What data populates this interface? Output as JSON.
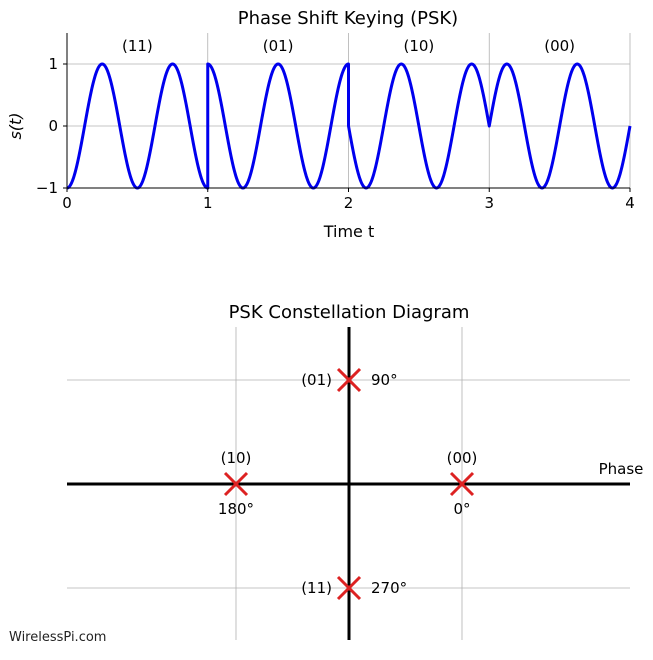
{
  "chart_data": [
    {
      "type": "line",
      "title": "Phase Shift Keying (PSK)",
      "xlabel": "Time t",
      "ylabel": "s(t)",
      "xlim": [
        0,
        4
      ],
      "ylim": [
        -1,
        1.5
      ],
      "x_ticks": [
        "0",
        "1",
        "2",
        "3",
        "4"
      ],
      "y_ticks": [
        "−1",
        "0",
        "1"
      ],
      "grid": true,
      "carrier_cycles_per_symbol": 2,
      "line_color": "#0000ee",
      "symbols": [
        {
          "label": "(11)",
          "start": 0,
          "end": 1,
          "phase_deg": 270
        },
        {
          "label": "(01)",
          "start": 1,
          "end": 2,
          "phase_deg": 90
        },
        {
          "label": "(10)",
          "start": 2,
          "end": 3,
          "phase_deg": 180
        },
        {
          "label": "(00)",
          "start": 3,
          "end": 4,
          "phase_deg": 0
        }
      ]
    },
    {
      "type": "scatter",
      "title": "PSK Constellation Diagram",
      "xlabel": "Phase",
      "xlim": [
        -1.25,
        1.25
      ],
      "ylim": [
        -1.4,
        1.4
      ],
      "grid": true,
      "marker": "x",
      "marker_color": "#dd2222",
      "points": [
        {
          "bits": "(00)",
          "angle": "0°",
          "x": 1,
          "y": 0
        },
        {
          "bits": "(01)",
          "angle": "90°",
          "x": 0,
          "y": 1
        },
        {
          "bits": "(10)",
          "angle": "180°",
          "x": -1,
          "y": 0
        },
        {
          "bits": "(11)",
          "angle": "270°",
          "x": 0,
          "y": -1
        }
      ]
    }
  ],
  "watermark": "WirelessPi.com"
}
